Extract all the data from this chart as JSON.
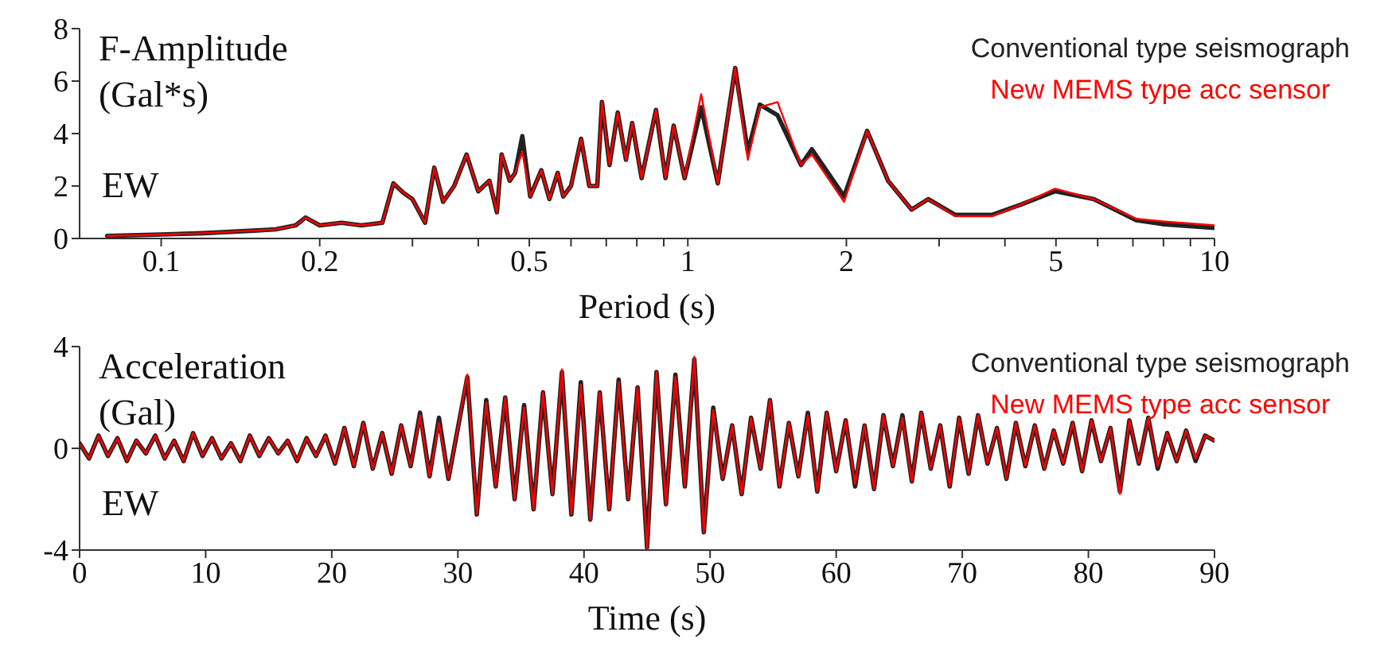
{
  "chart_data": [
    {
      "type": "line",
      "ylabel": "F-Amplitude (Gal*s)",
      "xlabel": "Period (s)",
      "annotations": [
        "EW"
      ],
      "log": "x",
      "legend": "top right",
      "xlim": [
        0.07,
        10
      ],
      "xticks": [
        0.1,
        0.2,
        {
          "value": 0.3,
          "label": null
        },
        {
          "value": 0.4,
          "label": null
        },
        0.5,
        {
          "value": 0.6,
          "label": null
        },
        {
          "value": 0.7,
          "label": null
        },
        {
          "value": 0.8,
          "label": null
        },
        {
          "value": 0.9,
          "label": null
        },
        1,
        2,
        {
          "value": 3,
          "label": null
        },
        {
          "value": 4,
          "label": null
        },
        5,
        {
          "value": 6,
          "label": null
        },
        {
          "value": 7,
          "label": null
        },
        {
          "value": 8,
          "label": null
        },
        {
          "value": 9,
          "label": null
        },
        10
      ],
      "ylim": [
        0,
        8
      ],
      "yticks": [
        0,
        2,
        4,
        6,
        8
      ],
      "x": [
        0.079,
        0.1,
        0.12,
        0.15,
        0.165,
        0.18,
        0.188,
        0.2,
        0.22,
        0.24,
        0.263,
        0.276,
        0.288,
        0.3,
        0.317,
        0.33,
        0.343,
        0.36,
        0.38,
        0.4,
        0.42,
        0.434,
        0.443,
        0.459,
        0.47,
        0.485,
        0.502,
        0.527,
        0.546,
        0.566,
        0.58,
        0.6,
        0.627,
        0.65,
        0.673,
        0.687,
        0.71,
        0.736,
        0.763,
        0.784,
        0.817,
        0.87,
        0.907,
        0.94,
        0.986,
        1.06,
        1.14,
        1.23,
        1.3,
        1.37,
        1.48,
        1.64,
        1.72,
        1.98,
        2.19,
        2.4,
        2.66,
        2.86,
        3.22,
        3.78,
        4.3,
        4.98,
        5.9,
        7.1,
        7.95,
        10
      ],
      "series": [
        {
          "name": "Conventional type seismograph",
          "color": "#222222",
          "values": [
            0.1,
            0.15,
            0.2,
            0.3,
            0.35,
            0.5,
            0.8,
            0.5,
            0.6,
            0.5,
            0.6,
            2.1,
            1.75,
            1.5,
            0.6,
            2.7,
            1.4,
            2.0,
            3.2,
            1.8,
            2.2,
            1.0,
            3.2,
            2.2,
            2.5,
            3.9,
            1.6,
            2.6,
            1.5,
            2.5,
            1.6,
            2.0,
            3.8,
            2.0,
            2.0,
            5.2,
            2.8,
            4.8,
            3.0,
            4.4,
            2.3,
            4.9,
            2.3,
            4.3,
            2.3,
            5.0,
            2.1,
            6.5,
            3.3,
            5.1,
            4.7,
            2.8,
            3.4,
            1.6,
            4.1,
            2.2,
            1.1,
            1.5,
            0.9,
            0.9,
            1.3,
            1.8,
            1.5,
            0.7,
            0.55,
            0.4
          ]
        },
        {
          "name": "New MEMS type acc sensor",
          "color": "#ff0000",
          "values": [
            0.1,
            0.15,
            0.2,
            0.3,
            0.35,
            0.5,
            0.8,
            0.5,
            0.6,
            0.5,
            0.6,
            2.1,
            1.75,
            1.5,
            0.6,
            2.7,
            1.4,
            2.0,
            3.2,
            1.8,
            2.2,
            1.0,
            3.2,
            2.2,
            2.5,
            3.3,
            1.6,
            2.6,
            1.5,
            2.5,
            1.6,
            2.0,
            3.8,
            2.0,
            2.0,
            5.2,
            2.8,
            4.8,
            3.0,
            4.4,
            2.3,
            4.9,
            2.3,
            4.3,
            2.3,
            5.5,
            2.1,
            6.5,
            3.0,
            5.0,
            5.2,
            2.8,
            3.2,
            1.4,
            4.1,
            2.2,
            1.1,
            1.5,
            0.85,
            0.85,
            1.3,
            1.9,
            1.5,
            0.75,
            0.65,
            0.5
          ]
        }
      ]
    },
    {
      "type": "line",
      "ylabel": "Acceleration (Gal)",
      "xlabel": "Time (s)",
      "annotations": [
        "EW"
      ],
      "legend": "top right",
      "xlim": [
        0,
        90
      ],
      "xticks": [
        0,
        10,
        20,
        30,
        40,
        50,
        60,
        70,
        80,
        90
      ],
      "ylim": [
        -4,
        4
      ],
      "yticks": [
        -4,
        0,
        4
      ],
      "x": [
        0,
        0.75,
        1.5,
        2.25,
        3,
        3.75,
        4.5,
        5.25,
        6,
        6.75,
        7.5,
        8.25,
        9,
        9.75,
        10.5,
        11.25,
        12,
        12.75,
        13.5,
        14.25,
        15,
        15.75,
        16.5,
        17.25,
        18,
        18.75,
        19.5,
        20.25,
        21,
        21.75,
        22.5,
        23.25,
        24,
        24.75,
        25.5,
        26.25,
        27,
        27.75,
        28.5,
        29.25,
        30,
        30.75,
        31.5,
        32.25,
        33,
        33.75,
        34.5,
        35.25,
        36,
        36.75,
        37.5,
        38.25,
        39,
        39.75,
        40.5,
        41.25,
        42,
        42.75,
        43.5,
        44.25,
        45,
        45.75,
        46.5,
        47.25,
        48,
        48.75,
        49.5,
        50.25,
        51,
        51.75,
        52.5,
        53.25,
        54,
        54.75,
        55.5,
        56.25,
        57,
        57.75,
        58.5,
        59.25,
        60,
        60.75,
        61.5,
        62.25,
        63,
        63.75,
        64.5,
        65.25,
        66,
        66.75,
        67.5,
        68.25,
        69,
        69.75,
        70.5,
        71.25,
        72,
        72.75,
        73.5,
        74.25,
        75,
        75.75,
        76.5,
        77.25,
        78,
        78.75,
        79.5,
        80.25,
        81,
        81.75,
        82.5,
        83.25,
        84,
        84.75,
        85.5,
        86.25,
        87,
        87.75,
        88.5,
        89.25,
        90
      ],
      "series": [
        {
          "name": "Conventional type seismograph",
          "color": "#222222",
          "values": [
            0.2,
            -0.4,
            0.5,
            -0.3,
            0.4,
            -0.5,
            0.3,
            -0.2,
            0.5,
            -0.4,
            0.3,
            -0.5,
            0.6,
            -0.3,
            0.4,
            -0.4,
            0.2,
            -0.5,
            0.5,
            -0.3,
            0.4,
            -0.2,
            0.3,
            -0.5,
            0.4,
            -0.3,
            0.5,
            -0.6,
            0.8,
            -0.7,
            1.0,
            -0.8,
            0.6,
            -1.0,
            0.9,
            -0.7,
            1.4,
            -1.1,
            1.2,
            -1.2,
            0.8,
            2.8,
            -2.6,
            1.9,
            -1.5,
            2.0,
            -2.0,
            1.7,
            -2.4,
            2.2,
            -1.8,
            3.0,
            -2.6,
            2.6,
            -2.8,
            2.2,
            -2.4,
            2.7,
            -2.0,
            2.4,
            -3.9,
            3.0,
            -2.2,
            2.9,
            -1.5,
            3.5,
            -3.3,
            1.6,
            -1.2,
            0.9,
            -1.8,
            1.2,
            -0.8,
            1.9,
            -1.5,
            1.0,
            -1.1,
            1.4,
            -1.7,
            1.4,
            -0.9,
            1.1,
            -1.5,
            0.9,
            -1.6,
            1.3,
            -0.7,
            1.3,
            -1.3,
            1.4,
            -0.8,
            0.9,
            -1.5,
            1.2,
            -1.0,
            1.3,
            -0.6,
            0.8,
            -1.2,
            1.0,
            -0.7,
            0.9,
            -0.8,
            0.7,
            -0.6,
            1.0,
            -0.9,
            1.1,
            -0.5,
            0.8,
            -1.7,
            1.1,
            -0.6,
            1.2,
            -0.8,
            0.6,
            -0.5,
            0.7,
            -0.5,
            0.5,
            0.3
          ]
        },
        {
          "name": "New MEMS type acc sensor",
          "color": "#ff0000",
          "values": [
            0.2,
            -0.4,
            0.5,
            -0.3,
            0.4,
            -0.5,
            0.3,
            -0.2,
            0.5,
            -0.4,
            0.3,
            -0.5,
            0.6,
            -0.3,
            0.4,
            -0.4,
            0.2,
            -0.5,
            0.5,
            -0.3,
            0.4,
            -0.2,
            0.3,
            -0.5,
            0.4,
            -0.3,
            0.5,
            -0.6,
            0.8,
            -0.7,
            1.0,
            -0.8,
            0.6,
            -1.0,
            0.9,
            -0.7,
            1.3,
            -1.1,
            1.0,
            -1.2,
            0.8,
            2.9,
            -2.6,
            1.8,
            -1.5,
            2.0,
            -2.0,
            1.6,
            -2.4,
            2.2,
            -1.8,
            3.1,
            -2.6,
            2.5,
            -2.8,
            2.2,
            -2.4,
            2.6,
            -2.0,
            2.4,
            -4.0,
            3.0,
            -2.2,
            2.8,
            -1.5,
            3.6,
            -3.3,
            1.5,
            -1.2,
            0.9,
            -1.8,
            1.2,
            -0.8,
            1.9,
            -1.5,
            1.0,
            -1.1,
            1.3,
            -1.7,
            1.4,
            -0.9,
            1.1,
            -1.4,
            0.9,
            -1.6,
            1.3,
            -0.7,
            1.2,
            -1.3,
            1.4,
            -0.8,
            0.9,
            -1.5,
            1.2,
            -1.0,
            1.3,
            -0.6,
            0.8,
            -1.2,
            1.0,
            -0.7,
            0.9,
            -0.8,
            0.7,
            -0.6,
            1.0,
            -0.9,
            1.1,
            -0.5,
            0.8,
            -1.8,
            1.1,
            -0.6,
            1.2,
            -0.7,
            0.6,
            -0.5,
            0.7,
            -0.4,
            0.5,
            0.3
          ]
        }
      ]
    }
  ]
}
